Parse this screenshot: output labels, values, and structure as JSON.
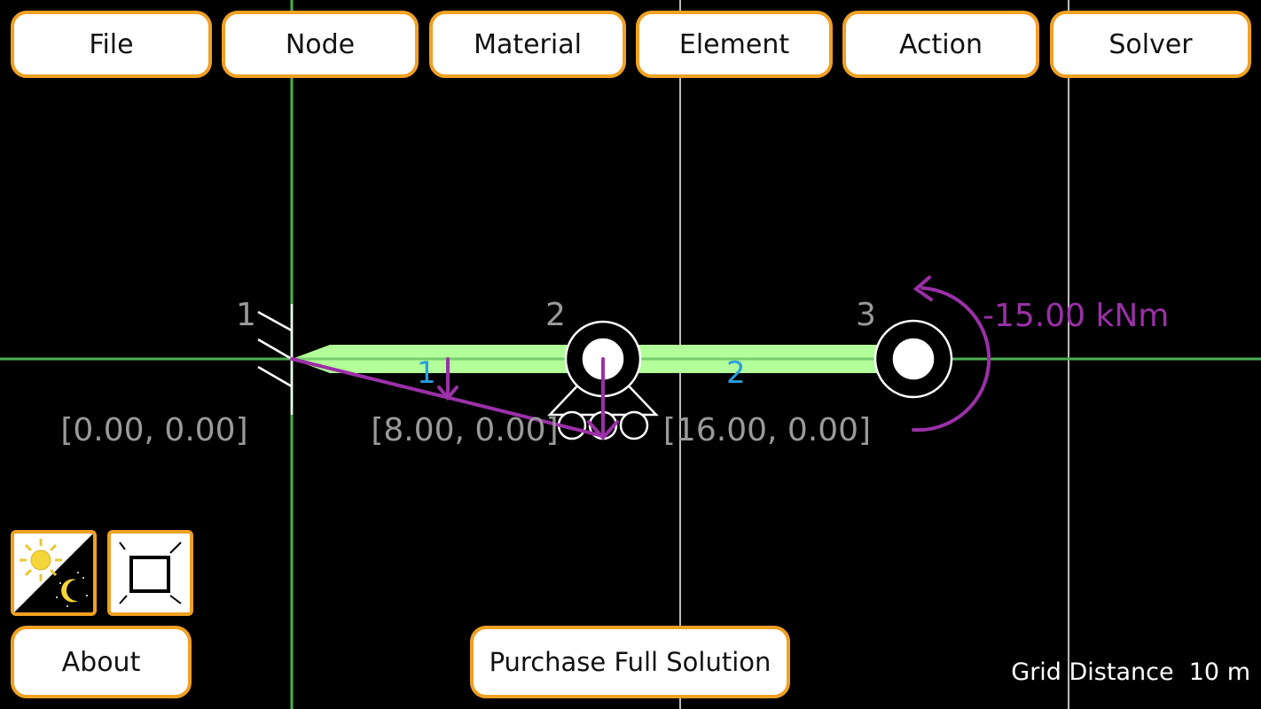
{
  "menu": {
    "file": "File",
    "node": "Node",
    "material": "Material",
    "element": "Element",
    "action": "Action",
    "solver": "Solver"
  },
  "nodes": [
    {
      "id": "1",
      "coord": "[0.00, 0.00]",
      "support": "fixed"
    },
    {
      "id": "2",
      "coord": "[8.00, 0.00]",
      "support": "roller"
    },
    {
      "id": "3",
      "coord": "[16.00, 0.00]",
      "support": "hinge"
    }
  ],
  "elements": [
    {
      "id": "1"
    },
    {
      "id": "2"
    }
  ],
  "moment_label": "-15.00 kNm",
  "bottom": {
    "about": "About",
    "purchase": "Purchase Full Solution",
    "grid_label": "Grid Distance",
    "grid_value": "10 m"
  },
  "icons": {
    "theme": "sun-moon-icon",
    "fit": "fit-screen-icon"
  },
  "colors": {
    "button_border": "#f0a023",
    "beam": "#b3ff99",
    "load": "#9b30a8",
    "element_label": "#2a9de0",
    "axis": "#4caf50",
    "node_label": "#9a9a9a"
  }
}
